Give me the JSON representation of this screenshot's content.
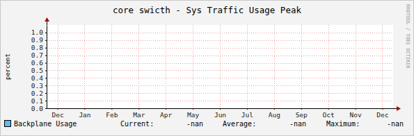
{
  "chart_data": {
    "type": "line",
    "title": "core swicth - Sys Traffic Usage Peak",
    "y_label": "percent",
    "watermark": "RRDTOOL / TOBI OETIKER",
    "categories": [
      "Dec",
      "Jan",
      "Feb",
      "Mar",
      "Apr",
      "May",
      "Jun",
      "Jul",
      "Aug",
      "Sep",
      "Oct",
      "Nov",
      "Dec"
    ],
    "series": [
      {
        "name": "Backplane Usage",
        "color": "#66b8ee",
        "values": [
          null,
          null,
          null,
          null,
          null,
          null,
          null,
          null,
          null,
          null,
          null,
          null,
          null
        ]
      }
    ],
    "stats": [
      {
        "label": "Current:",
        "value": "-nan"
      },
      {
        "label": "Average:",
        "value": "-nan"
      },
      {
        "label": "Maximum:",
        "value": "-nan"
      }
    ],
    "ylim": [
      0,
      1.1
    ],
    "yticks": [
      {
        "value": 0,
        "label": "0.0"
      },
      {
        "value": 0.1,
        "label": "0.1"
      },
      {
        "value": 0.2,
        "label": "0.2"
      },
      {
        "value": 0.3,
        "label": "0.3"
      },
      {
        "value": 0.4,
        "label": "0.4"
      },
      {
        "value": 0.5,
        "label": "0.5"
      },
      {
        "value": 0.6,
        "label": "0.6"
      },
      {
        "value": 0.7,
        "label": "0.7"
      },
      {
        "value": 0.8,
        "label": "0.8"
      },
      {
        "value": 0.9,
        "label": "0.9"
      },
      {
        "value": 1,
        "label": "1.0"
      }
    ],
    "grid": true,
    "legend": "bottom"
  }
}
